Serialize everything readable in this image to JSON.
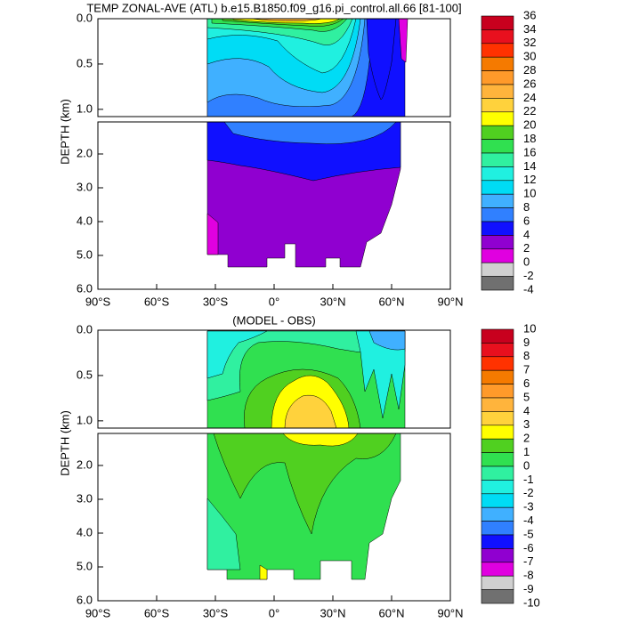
{
  "chart_data": [
    {
      "type": "contour",
      "title": "TEMP ZONAL-AVE (ATL) b.e15.B1850.f09_g16.pi_control.all.66 [81-100]",
      "ylabel": "DEPTH (km)",
      "xlim": [
        -90,
        90
      ],
      "xticks": [
        {
          "value": -90,
          "label": "90°S"
        },
        {
          "value": -60,
          "label": "60°S"
        },
        {
          "value": -30,
          "label": "30°S"
        },
        {
          "value": 0,
          "label": "0°"
        },
        {
          "value": 30,
          "label": "30°N"
        },
        {
          "value": 60,
          "label": "60°N"
        },
        {
          "value": 90,
          "label": "90°N"
        }
      ],
      "ylim": [
        0,
        6
      ],
      "yticks": [
        {
          "value": 0,
          "label": "0.0"
        },
        {
          "value": 0.5,
          "label": "0.5"
        },
        {
          "value": 1,
          "label": "1.0"
        },
        {
          "value": 2,
          "label": "2.0"
        },
        {
          "value": 3,
          "label": "3.0"
        },
        {
          "value": 4,
          "label": "4.0"
        },
        {
          "value": 5,
          "label": "5.0"
        },
        {
          "value": 6,
          "label": "6.0"
        }
      ],
      "colorbar": {
        "levels": [
          36,
          34,
          32,
          30,
          28,
          26,
          24,
          22,
          20,
          18,
          16,
          14,
          12,
          10,
          8,
          6,
          4,
          2,
          0,
          -2,
          -4
        ],
        "colors": [
          "#c8001e",
          "#e8101e",
          "#ff3200",
          "#f57a00",
          "#ff9a2a",
          "#ffb43c",
          "#ffd23c",
          "#ffff00",
          "#50d020",
          "#30e050",
          "#30f0a0",
          "#20f0e0",
          "#00dcf5",
          "#40b0ff",
          "#3080ff",
          "#1010ff",
          "#9000d0",
          "#e000e0",
          "#d0d0d0",
          "#707070"
        ]
      }
    },
    {
      "type": "contour",
      "title": "(MODEL - OBS)",
      "ylabel": "DEPTH (km)",
      "xlim": [
        -90,
        90
      ],
      "xticks": [
        {
          "value": -90,
          "label": "90°S"
        },
        {
          "value": -60,
          "label": "60°S"
        },
        {
          "value": -30,
          "label": "30°S"
        },
        {
          "value": 0,
          "label": "0°"
        },
        {
          "value": 30,
          "label": "30°N"
        },
        {
          "value": 60,
          "label": "60°N"
        },
        {
          "value": 90,
          "label": "90°N"
        }
      ],
      "ylim": [
        0,
        6
      ],
      "yticks": [
        {
          "value": 0,
          "label": "0.0"
        },
        {
          "value": 0.5,
          "label": "0.5"
        },
        {
          "value": 1,
          "label": "1.0"
        },
        {
          "value": 2,
          "label": "2.0"
        },
        {
          "value": 3,
          "label": "3.0"
        },
        {
          "value": 4,
          "label": "4.0"
        },
        {
          "value": 5,
          "label": "5.0"
        },
        {
          "value": 6,
          "label": "6.0"
        }
      ],
      "colorbar": {
        "levels": [
          10,
          9,
          8,
          7,
          6,
          5,
          4,
          3,
          2,
          1,
          0,
          -1,
          -2,
          -3,
          -4,
          -5,
          -6,
          -7,
          -8,
          -9,
          -10
        ],
        "colors": [
          "#c8001e",
          "#e8101e",
          "#ff3200",
          "#f57a00",
          "#ff9a2a",
          "#ffb43c",
          "#ffd23c",
          "#ffff00",
          "#50d020",
          "#30e050",
          "#30f0a0",
          "#20f0e0",
          "#00dcf5",
          "#40b0ff",
          "#3080ff",
          "#1010ff",
          "#9000d0",
          "#e000e0",
          "#d0d0d0",
          "#707070"
        ]
      }
    }
  ]
}
